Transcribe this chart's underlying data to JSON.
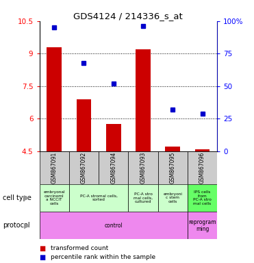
{
  "title": "GDS4124 / 214336_s_at",
  "samples": [
    "GSM867091",
    "GSM867092",
    "GSM867094",
    "GSM867093",
    "GSM867095",
    "GSM867096"
  ],
  "red_values": [
    9.3,
    6.9,
    5.75,
    9.2,
    4.7,
    4.6
  ],
  "blue_values": [
    95,
    68,
    52,
    96,
    32,
    29
  ],
  "ylim_left": [
    4.5,
    10.5
  ],
  "ylim_right": [
    0,
    100
  ],
  "yticks_left": [
    4.5,
    6.0,
    7.5,
    9.0,
    10.5
  ],
  "yticks_right": [
    0,
    25,
    50,
    75,
    100
  ],
  "ytick_labels_left": [
    "4.5",
    "6",
    "7.5",
    "9",
    "10.5"
  ],
  "ytick_labels_right": [
    "0",
    "25",
    "50",
    "75",
    "100%"
  ],
  "grid_yticks": [
    6.0,
    7.5,
    9.0
  ],
  "cell_spans": [
    1,
    2,
    1,
    1,
    1
  ],
  "cell_texts": [
    "embryonal\ncarcinoml\na NCCIT\ncells",
    "PC-A stromal cells,\nsorted",
    "PC-A stro\nmal cells,\ncultured",
    "embryoni\nc stem\ncells",
    "IPS cells\nfrom\nPC-A stro\nmal cells"
  ],
  "cell_colors": [
    "#ccffcc",
    "#ccffcc",
    "#ccffcc",
    "#ccffcc",
    "#66ff66"
  ],
  "proto_spans": [
    5,
    1
  ],
  "proto_texts": [
    "control",
    "reprogram\nming"
  ],
  "proto_color": "#ee88ee",
  "bar_color": "#cc0000",
  "dot_color": "#0000cc",
  "bg_color": "#ffffff",
  "sample_box_color": "#cccccc",
  "label_cell_type": "cell type",
  "label_protocol": "protocol",
  "legend_red": "transformed count",
  "legend_blue": "percentile rank within the sample"
}
